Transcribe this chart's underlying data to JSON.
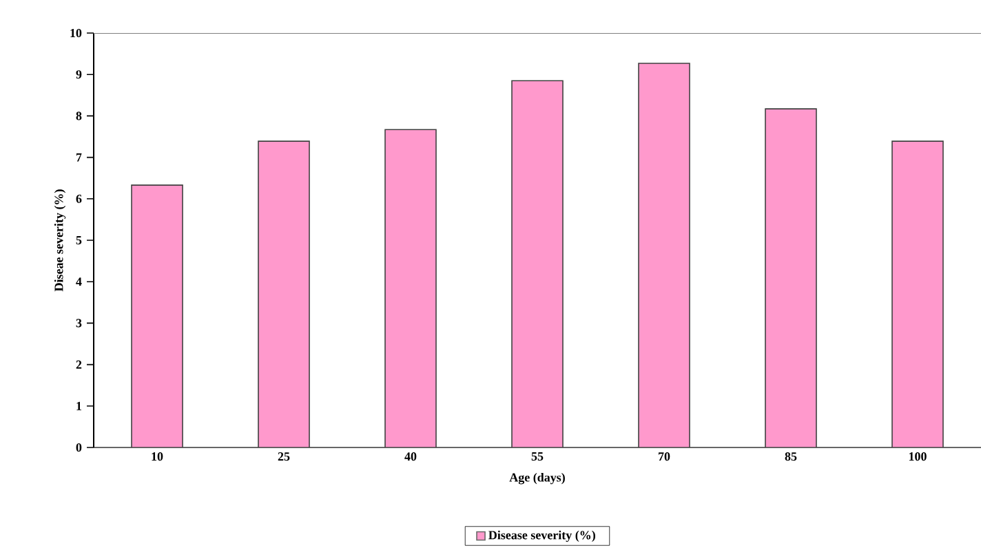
{
  "chart_data": {
    "type": "bar",
    "xlabel": "Age (days)",
    "ylabel": "Diseae severity (%)",
    "categories": [
      "10",
      "25",
      "40",
      "55",
      "70",
      "85",
      "100"
    ],
    "series": [
      {
        "name": "Disease severity (%)",
        "color": "#ff99cc",
        "values": [
          6.33,
          7.39,
          7.67,
          8.85,
          9.27,
          8.17,
          7.39
        ]
      }
    ],
    "ylim": [
      0,
      10
    ],
    "yticks": [
      0,
      1,
      2,
      3,
      4,
      5,
      6,
      7,
      8,
      9,
      10
    ],
    "legend": "bottom",
    "grid": false
  }
}
